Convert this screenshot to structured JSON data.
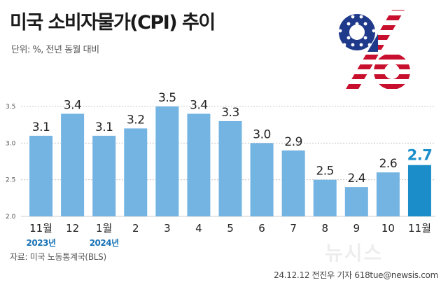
{
  "title": "미국 소비자물가(CPI) 추이",
  "unit_label": "단위: %, 전년 동월 대비",
  "source": "자료: 미국 노동통계국(BLS)",
  "credit": "24.12.12 전진우 기자 618tue@newsis.com",
  "watermark": "뉴시스",
  "logo_glyph": "%",
  "colors": {
    "bar": "#74b4e2",
    "bar_highlight": "#1b8ec9",
    "grid": "#bbbbbb",
    "year_label": "#1b74b6"
  },
  "chart_data": {
    "type": "bar",
    "categories": [
      "11월",
      "12",
      "1월",
      "2",
      "3",
      "4",
      "5",
      "6",
      "7",
      "8",
      "9",
      "10",
      "11월"
    ],
    "values": [
      3.1,
      3.4,
      3.1,
      3.2,
      3.5,
      3.4,
      3.3,
      3.0,
      2.9,
      2.5,
      2.4,
      2.6,
      2.7
    ],
    "value_labels": [
      "3.1",
      "3.4",
      "3.1",
      "3.2",
      "3.5",
      "3.4",
      "3.3",
      "3.0",
      "2.9",
      "2.5",
      "2.4",
      "2.6",
      "2.7"
    ],
    "highlight_index": 12,
    "year_labels": [
      {
        "index": 0,
        "text": "2023년"
      },
      {
        "index": 2,
        "text": "2024년"
      }
    ],
    "yticks": [
      "2.0",
      "2.5",
      "3.0",
      "3.5"
    ],
    "ylim": [
      2.0,
      3.5
    ],
    "grid": true
  }
}
